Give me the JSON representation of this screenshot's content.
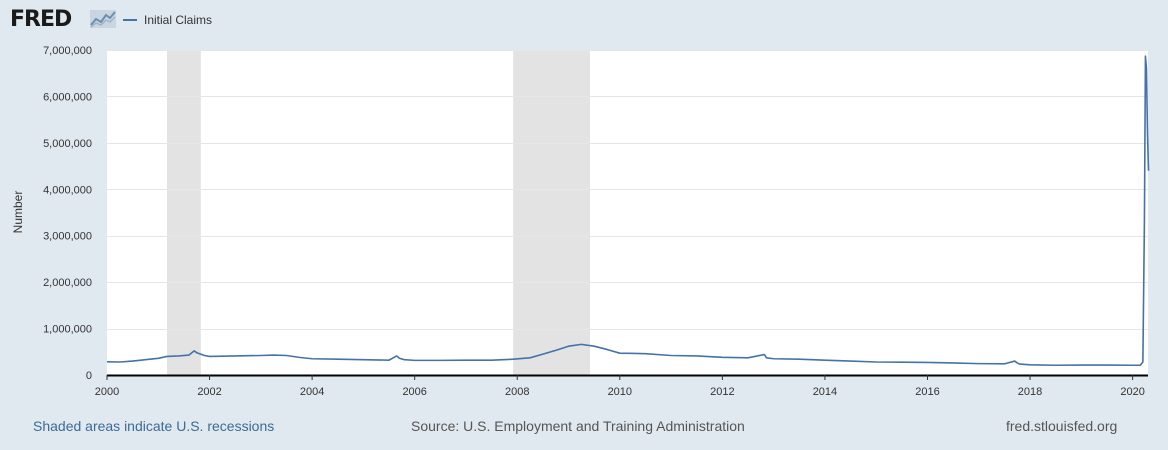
{
  "header": {
    "logo_text": "FRED",
    "logo_icon": "fred-graph-icon",
    "legend_label": "Initial Claims"
  },
  "colors": {
    "series": "#4572a7",
    "recession": "#e3e3e3",
    "background": "#e1e9f0",
    "plot": "#ffffff"
  },
  "chart_data": {
    "type": "line",
    "title": "",
    "xlabel": "",
    "ylabel": "Number",
    "xlim": [
      2000,
      2020.3
    ],
    "ylim": [
      0,
      7000000
    ],
    "grid": true,
    "legend_position": "top-left",
    "y_ticks": [
      {
        "value": 0,
        "label": "0"
      },
      {
        "value": 1000000,
        "label": "1,000,000"
      },
      {
        "value": 2000000,
        "label": "2,000,000"
      },
      {
        "value": 3000000,
        "label": "3,000,000"
      },
      {
        "value": 4000000,
        "label": "4,000,000"
      },
      {
        "value": 5000000,
        "label": "5,000,000"
      },
      {
        "value": 6000000,
        "label": "6,000,000"
      },
      {
        "value": 7000000,
        "label": "7,000,000"
      }
    ],
    "x_ticks": [
      {
        "value": 2000,
        "label": "2000"
      },
      {
        "value": 2002,
        "label": "2002"
      },
      {
        "value": 2004,
        "label": "2004"
      },
      {
        "value": 2006,
        "label": "2006"
      },
      {
        "value": 2008,
        "label": "2008"
      },
      {
        "value": 2010,
        "label": "2010"
      },
      {
        "value": 2012,
        "label": "2012"
      },
      {
        "value": 2014,
        "label": "2014"
      },
      {
        "value": 2016,
        "label": "2016"
      },
      {
        "value": 2018,
        "label": "2018"
      },
      {
        "value": 2020,
        "label": "2020"
      }
    ],
    "recessions": [
      {
        "start": 2001.17,
        "end": 2001.83
      },
      {
        "start": 2007.92,
        "end": 2009.42
      }
    ],
    "series": [
      {
        "name": "Initial Claims",
        "x": [
          2000.0,
          2000.25,
          2000.5,
          2000.75,
          2001.0,
          2001.17,
          2001.4,
          2001.6,
          2001.7,
          2001.75,
          2001.8,
          2001.9,
          2002.0,
          2002.25,
          2002.5,
          2002.75,
          2003.0,
          2003.25,
          2003.5,
          2003.75,
          2004.0,
          2004.5,
          2005.0,
          2005.5,
          2005.65,
          2005.7,
          2005.8,
          2006.0,
          2006.5,
          2007.0,
          2007.5,
          2007.92,
          2008.25,
          2008.5,
          2008.75,
          2009.0,
          2009.25,
          2009.5,
          2009.75,
          2010.0,
          2010.5,
          2011.0,
          2011.5,
          2012.0,
          2012.5,
          2012.82,
          2012.86,
          2013.0,
          2013.5,
          2014.0,
          2014.5,
          2015.0,
          2015.5,
          2016.0,
          2016.5,
          2017.0,
          2017.5,
          2017.7,
          2017.75,
          2017.8,
          2018.0,
          2018.5,
          2019.0,
          2019.5,
          2020.0,
          2020.15,
          2020.2,
          2020.23,
          2020.25,
          2020.27,
          2020.29,
          2020.31
        ],
        "values": [
          285000,
          280000,
          300000,
          330000,
          360000,
          400000,
          410000,
          430000,
          520000,
          480000,
          460000,
          420000,
          400000,
          405000,
          410000,
          415000,
          420000,
          430000,
          420000,
          380000,
          350000,
          340000,
          330000,
          320000,
          410000,
          360000,
          330000,
          315000,
          315000,
          320000,
          320000,
          340000,
          370000,
          450000,
          530000,
          620000,
          660000,
          620000,
          550000,
          470000,
          460000,
          420000,
          410000,
          380000,
          370000,
          440000,
          370000,
          350000,
          340000,
          320000,
          300000,
          280000,
          275000,
          270000,
          260000,
          245000,
          240000,
          300000,
          260000,
          235000,
          220000,
          210000,
          215000,
          215000,
          210000,
          211000,
          280000,
          3300000,
          6867000,
          6600000,
          5200000,
          4400000
        ]
      }
    ]
  },
  "footer": {
    "recession_note": "Shaded areas indicate U.S. recessions",
    "source": "Source: U.S. Employment and Training Administration",
    "site": "fred.stlouisfed.org"
  }
}
